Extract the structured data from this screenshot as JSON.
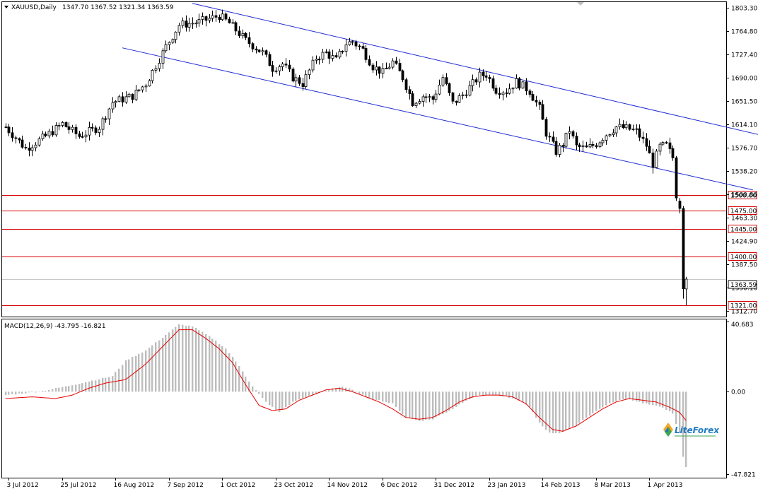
{
  "colors": {
    "background": "#ffffff",
    "frame": "#000000",
    "bull_fill": "#ffffff",
    "bear_fill": "#000000",
    "candle_outline": "#000000",
    "channel": "#1f2bd6",
    "level": "#d40000",
    "macd_hist": "#bdbdbd",
    "macd_signal": "#e60000",
    "price_line": "#c8c8c8"
  },
  "icons": {
    "menu": "triangle-down-icon",
    "scroll": "triangle-down-icon",
    "logo": "liteforex-logo"
  },
  "chart_data": [
    {
      "type": "candlestick",
      "symbol_label": "XAUUSD,Daily",
      "ohlc_label": "1347.70 1367.52 1321.34 1363.59",
      "ylim": [
        1303,
        1812
      ],
      "y_ticks": [
        "1803.30",
        "1764.80",
        "1727.40",
        "1690.00",
        "1651.50",
        "1614.10",
        "1576.70",
        "1538.20",
        "1500.80",
        "1463.30",
        "1424.90",
        "1387.50",
        "1350.10",
        "1312.70"
      ],
      "x_ticks": [
        {
          "label": "3 Jul 2012",
          "index": 1
        },
        {
          "label": "25 Jul 2012",
          "index": 17
        },
        {
          "label": "16 Aug 2012",
          "index": 33
        },
        {
          "label": "7 Sep 2012",
          "index": 49
        },
        {
          "label": "1 Oct 2012",
          "index": 65
        },
        {
          "label": "23 Oct 2012",
          "index": 81
        },
        {
          "label": "14 Nov 2012",
          "index": 97
        },
        {
          "label": "6 Dec 2012",
          "index": 113
        },
        {
          "label": "31 Dec 2012",
          "index": 129
        },
        {
          "label": "23 Jan 2013",
          "index": 145
        },
        {
          "label": "14 Feb 2013",
          "index": 161
        },
        {
          "label": "8 Mar 2013",
          "index": 177
        },
        {
          "label": "1 Apr 2013",
          "index": 193
        }
      ],
      "last_price": "1363.59",
      "last_price_value": 1363.59,
      "levels": [
        {
          "label": "1500.00",
          "value": 1500
        },
        {
          "label": "1475.00",
          "value": 1475
        },
        {
          "label": "1445.00",
          "value": 1445
        },
        {
          "label": "1400.00",
          "value": 1400
        },
        {
          "label": "1321.00",
          "value": 1321
        }
      ],
      "channel_lines": [
        {
          "name": "upper",
          "x1": 56,
          "y1": 1810,
          "x2": 235,
          "y2": 1586
        },
        {
          "name": "lower",
          "x1": 35,
          "y1": 1738,
          "x2": 224,
          "y2": 1508
        }
      ],
      "anchors": [
        [
          0,
          1610
        ],
        [
          6,
          1575
        ],
        [
          12,
          1595
        ],
        [
          17,
          1615
        ],
        [
          22,
          1595
        ],
        [
          28,
          1610
        ],
        [
          32,
          1650
        ],
        [
          38,
          1660
        ],
        [
          42,
          1680
        ],
        [
          48,
          1740
        ],
        [
          52,
          1775
        ],
        [
          58,
          1780
        ],
        [
          64,
          1790
        ],
        [
          67,
          1778
        ],
        [
          72,
          1750
        ],
        [
          77,
          1730
        ],
        [
          80,
          1705
        ],
        [
          83,
          1712
        ],
        [
          86,
          1690
        ],
        [
          89,
          1680
        ],
        [
          93,
          1722
        ],
        [
          96,
          1730
        ],
        [
          99,
          1718
        ],
        [
          102,
          1745
        ],
        [
          104,
          1748
        ],
        [
          107,
          1735
        ],
        [
          110,
          1708
        ],
        [
          113,
          1698
        ],
        [
          116,
          1715
        ],
        [
          119,
          1690
        ],
        [
          122,
          1650
        ],
        [
          125,
          1660
        ],
        [
          128,
          1655
        ],
        [
          131,
          1690
        ],
        [
          134,
          1648
        ],
        [
          137,
          1662
        ],
        [
          140,
          1680
        ],
        [
          142,
          1693
        ],
        [
          144,
          1695
        ],
        [
          147,
          1670
        ],
        [
          150,
          1668
        ],
        [
          153,
          1683
        ],
        [
          155,
          1676
        ],
        [
          157,
          1668
        ],
        [
          160,
          1640
        ],
        [
          162,
          1600
        ],
        [
          165,
          1570
        ],
        [
          167,
          1582
        ],
        [
          169,
          1605
        ],
        [
          171,
          1578
        ],
        [
          174,
          1575
        ],
        [
          177,
          1583
        ],
        [
          180,
          1598
        ],
        [
          183,
          1610
        ],
        [
          186,
          1608
        ],
        [
          189,
          1603
        ],
        [
          192,
          1580
        ],
        [
          194,
          1550
        ],
        [
          196,
          1578
        ],
        [
          198,
          1580
        ],
        [
          200,
          1560
        ],
        [
          201,
          1495
        ],
        [
          202,
          1480
        ],
        [
          203,
          1335
        ],
        [
          204,
          1364
        ]
      ],
      "candles_last": [
        {
          "index": 200,
          "open": 1575,
          "high": 1580,
          "close": 1560,
          "low": 1555
        },
        {
          "index": 201,
          "open": 1560,
          "high": 1563,
          "close": 1495,
          "low": 1490
        },
        {
          "index": 202,
          "open": 1490,
          "high": 1495,
          "close": 1478,
          "low": 1470
        },
        {
          "index": 203,
          "open": 1478,
          "high": 1482,
          "close": 1348,
          "low": 1332
        },
        {
          "index": 204,
          "open": 1347.7,
          "high": 1367.52,
          "close": 1363.59,
          "low": 1321.34
        }
      ],
      "xlim": [
        -1,
        216
      ]
    },
    {
      "type": "bar",
      "indicator": "MACD",
      "title": "MACD(12,26,9) -43.795 -16.821",
      "ylim": [
        -50,
        42
      ],
      "y_ticks": [
        "40.683",
        "0.00",
        "-47.821"
      ],
      "main_anchors": [
        [
          0,
          -2
        ],
        [
          10,
          0
        ],
        [
          18,
          3
        ],
        [
          25,
          6
        ],
        [
          32,
          9
        ],
        [
          36,
          18
        ],
        [
          42,
          24
        ],
        [
          48,
          33
        ],
        [
          52,
          39
        ],
        [
          56,
          38
        ],
        [
          62,
          31
        ],
        [
          66,
          25
        ],
        [
          70,
          15
        ],
        [
          74,
          3
        ],
        [
          78,
          -6
        ],
        [
          82,
          -12
        ],
        [
          86,
          -6
        ],
        [
          90,
          -3
        ],
        [
          94,
          -1
        ],
        [
          98,
          2
        ],
        [
          101,
          3
        ],
        [
          104,
          1
        ],
        [
          108,
          -3
        ],
        [
          112,
          -5
        ],
        [
          116,
          -7
        ],
        [
          120,
          -15
        ],
        [
          124,
          -17
        ],
        [
          128,
          -16
        ],
        [
          131,
          -13
        ],
        [
          134,
          -10
        ],
        [
          138,
          -5
        ],
        [
          142,
          -2
        ],
        [
          146,
          -2
        ],
        [
          150,
          -3
        ],
        [
          154,
          -5
        ],
        [
          157,
          -9
        ],
        [
          160,
          -18
        ],
        [
          163,
          -24
        ],
        [
          166,
          -24
        ],
        [
          170,
          -21
        ],
        [
          174,
          -15
        ],
        [
          178,
          -10
        ],
        [
          182,
          -6
        ],
        [
          186,
          -4
        ],
        [
          190,
          -6
        ],
        [
          194,
          -8
        ],
        [
          197,
          -9
        ],
        [
          200,
          -13
        ],
        [
          201,
          -19
        ],
        [
          202,
          -24
        ],
        [
          203,
          -38
        ],
        [
          204,
          -43.795
        ]
      ],
      "signal_anchors": [
        [
          0,
          -4
        ],
        [
          8,
          -3
        ],
        [
          15,
          -4
        ],
        [
          20,
          -2
        ],
        [
          25,
          2
        ],
        [
          30,
          5
        ],
        [
          36,
          7
        ],
        [
          42,
          16
        ],
        [
          48,
          28
        ],
        [
          52,
          36
        ],
        [
          56,
          36
        ],
        [
          60,
          31
        ],
        [
          64,
          25
        ],
        [
          68,
          17
        ],
        [
          72,
          4
        ],
        [
          76,
          -8
        ],
        [
          80,
          -11
        ],
        [
          84,
          -10
        ],
        [
          88,
          -5
        ],
        [
          92,
          -2
        ],
        [
          96,
          1
        ],
        [
          100,
          2
        ],
        [
          104,
          0
        ],
        [
          108,
          -3
        ],
        [
          112,
          -6
        ],
        [
          116,
          -10
        ],
        [
          120,
          -15
        ],
        [
          124,
          -16
        ],
        [
          128,
          -15
        ],
        [
          132,
          -11
        ],
        [
          136,
          -6
        ],
        [
          140,
          -3
        ],
        [
          144,
          -2
        ],
        [
          148,
          -2
        ],
        [
          152,
          -3
        ],
        [
          156,
          -7
        ],
        [
          160,
          -15
        ],
        [
          164,
          -22
        ],
        [
          167,
          -23
        ],
        [
          171,
          -20
        ],
        [
          175,
          -15
        ],
        [
          179,
          -10
        ],
        [
          183,
          -6
        ],
        [
          187,
          -4
        ],
        [
          191,
          -5
        ],
        [
          195,
          -6
        ],
        [
          199,
          -9
        ],
        [
          202,
          -12
        ],
        [
          204,
          -16.821
        ]
      ]
    }
  ]
}
